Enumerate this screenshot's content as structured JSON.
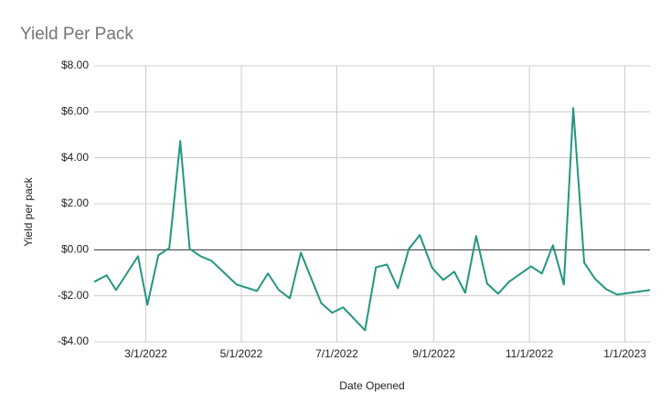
{
  "chart_data": {
    "type": "line",
    "title": "Yield Per Pack",
    "x_label": "Date Opened",
    "y_label": "Yield per pack",
    "x": [
      "1/27/2022",
      "2/4/2022",
      "2/10/2022",
      "2/24/2022",
      "3/2/2022",
      "3/9/2022",
      "3/16/2022",
      "3/23/2022",
      "3/29/2022",
      "4/5/2022",
      "4/12/2022",
      "4/28/2022",
      "5/11/2022",
      "5/18/2022",
      "5/25/2022",
      "6/1/2022",
      "6/8/2022",
      "6/21/2022",
      "6/28/2022",
      "7/5/2022",
      "7/19/2022",
      "7/26/2022",
      "8/2/2022",
      "8/9/2022",
      "8/16/2022",
      "8/23/2022",
      "8/31/2022",
      "9/7/2022",
      "9/14/2022",
      "9/21/2022",
      "9/28/2022",
      "10/5/2022",
      "10/12/2022",
      "10/19/2022",
      "11/2/2022",
      "11/9/2022",
      "11/16/2022",
      "11/23/2022",
      "11/29/2022",
      "12/6/2022",
      "12/13/2022",
      "12/20/2022",
      "12/27/2022",
      "1/17/2023"
    ],
    "series": [
      {
        "name": "Yield per pack",
        "color": "#23967f",
        "values": [
          -1.39,
          -1.11,
          -1.75,
          -0.28,
          -2.39,
          -0.24,
          0.08,
          4.73,
          0.04,
          -0.28,
          -0.48,
          -1.51,
          -1.79,
          -1.03,
          -1.75,
          -2.11,
          -0.12,
          -2.31,
          -2.74,
          -2.5,
          -3.5,
          -0.76,
          -0.64,
          -1.67,
          0.04,
          0.64,
          -0.8,
          -1.31,
          -0.95,
          -1.87,
          0.6,
          -1.47,
          -1.91,
          -1.39,
          -0.72,
          -1.03,
          0.2,
          -1.51,
          6.16,
          -0.56,
          -1.27,
          -1.71,
          -1.95,
          -1.75
        ]
      }
    ],
    "xlim": [
      "1/27/2022",
      "1/17/2023"
    ],
    "xticks": [
      "3/1/2022",
      "5/1/2022",
      "7/1/2022",
      "9/1/2022",
      "11/1/2022",
      "1/1/2023"
    ],
    "ylim": [
      -4,
      8
    ],
    "yticks": [
      {
        "value": -4,
        "label": "-$4.00"
      },
      {
        "value": -2,
        "label": "-$2.00"
      },
      {
        "value": 0,
        "label": "$0.00"
      },
      {
        "value": 2,
        "label": "$2.00"
      },
      {
        "value": 4,
        "label": "$4.00"
      },
      {
        "value": 6,
        "label": "$6.00"
      },
      {
        "value": 8,
        "label": "$8.00"
      }
    ],
    "grid": true
  }
}
